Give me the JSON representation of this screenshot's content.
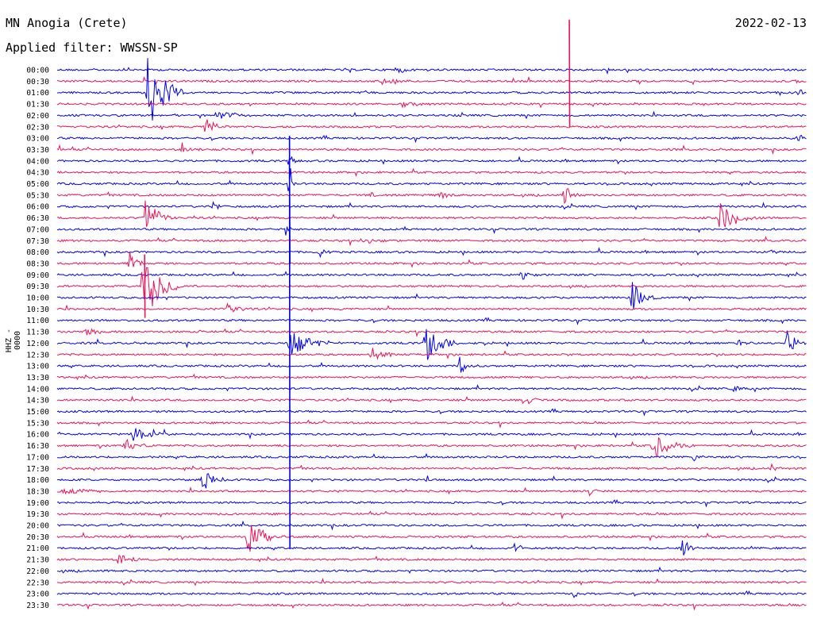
{
  "header": {
    "station": "MN Anogia (Crete)",
    "date": "2022-02-13",
    "filter_label": "Applied filter: WWSSN-SP"
  },
  "axis": {
    "ylabel": "HHZ - 0000"
  },
  "colors": {
    "even_rows": "#0000ee",
    "odd_rows": "#ee1155",
    "text": "#000000",
    "background": "#ffffff"
  },
  "chart_data": {
    "type": "line",
    "kind": "helicorder",
    "title": "MN Anogia (Crete)",
    "subtitle": "Applied filter: WWSSN-SP",
    "ylabel": "HHZ - 0000",
    "row_interval_minutes": 30,
    "row_labels": [
      "00:00",
      "00:30",
      "01:00",
      "01:30",
      "02:00",
      "02:30",
      "03:00",
      "03:30",
      "04:00",
      "04:30",
      "05:00",
      "05:30",
      "06:00",
      "06:30",
      "07:00",
      "07:30",
      "08:00",
      "08:30",
      "09:00",
      "09:30",
      "10:00",
      "10:30",
      "11:00",
      "11:30",
      "12:00",
      "12:30",
      "13:00",
      "13:30",
      "14:00",
      "14:30",
      "15:00",
      "15:30",
      "16:00",
      "16:30",
      "17:00",
      "17:30",
      "18:00",
      "18:30",
      "19:00",
      "19:30",
      "20:00",
      "20:30",
      "21:00",
      "21:30",
      "22:00",
      "22:30",
      "23:00",
      "23:30"
    ],
    "events": [
      {
        "row": 0,
        "minute": 13.5,
        "amp": 4,
        "dur": 2.0
      },
      {
        "row": 0,
        "minute": 22.0,
        "amp": 8,
        "dur": 0.4
      },
      {
        "row": 1,
        "minute": 13.0,
        "amp": 7,
        "dur": 1.4
      },
      {
        "row": 1,
        "minute": 29.5,
        "amp": 8,
        "dur": 0.3
      },
      {
        "row": 2,
        "minute": 3.6,
        "amp": 60,
        "dur": 1.6
      },
      {
        "row": 2,
        "minute": 29.7,
        "amp": 5,
        "dur": 0.8
      },
      {
        "row": 3,
        "minute": 13.8,
        "amp": 5,
        "dur": 1.6
      },
      {
        "row": 4,
        "minute": 6.4,
        "amp": 6,
        "dur": 1.8
      },
      {
        "row": 5,
        "minute": 5.9,
        "amp": 14,
        "dur": 1.0
      },
      {
        "row": 6,
        "minute": 29.6,
        "amp": 6,
        "dur": 0.5
      },
      {
        "row": 7,
        "minute": 5.0,
        "amp": 9,
        "dur": 0.9
      },
      {
        "row": 8,
        "minute": 9.3,
        "amp": 18,
        "dur": 0.3
      },
      {
        "row": 10,
        "minute": 9.3,
        "amp": 30,
        "dur": 0.3
      },
      {
        "row": 11,
        "minute": 12.5,
        "amp": 6,
        "dur": 0.8
      },
      {
        "row": 11,
        "minute": 15.3,
        "amp": 8,
        "dur": 0.9
      },
      {
        "row": 11,
        "minute": 20.3,
        "amp": 14,
        "dur": 0.8
      },
      {
        "row": 12,
        "minute": 6.2,
        "amp": 8,
        "dur": 0.6
      },
      {
        "row": 13,
        "minute": 3.5,
        "amp": 35,
        "dur": 1.1
      },
      {
        "row": 13,
        "minute": 26.5,
        "amp": 22,
        "dur": 1.8
      },
      {
        "row": 14,
        "minute": 9.1,
        "amp": 12,
        "dur": 0.4
      },
      {
        "row": 15,
        "minute": 12.2,
        "amp": 6,
        "dur": 1.2
      },
      {
        "row": 16,
        "minute": 10.5,
        "amp": 7,
        "dur": 0.6
      },
      {
        "row": 16,
        "minute": 28.6,
        "amp": 5,
        "dur": 1.0
      },
      {
        "row": 17,
        "minute": 2.9,
        "amp": 16,
        "dur": 0.8
      },
      {
        "row": 18,
        "minute": 18.6,
        "amp": 6,
        "dur": 1.0
      },
      {
        "row": 19,
        "minute": 3.4,
        "amp": 55,
        "dur": 1.7
      },
      {
        "row": 20,
        "minute": 23.0,
        "amp": 22,
        "dur": 1.0
      },
      {
        "row": 21,
        "minute": 6.8,
        "amp": 8,
        "dur": 1.0
      },
      {
        "row": 23,
        "minute": 1.1,
        "amp": 7,
        "dur": 1.2
      },
      {
        "row": 24,
        "minute": 9.3,
        "amp": 20,
        "dur": 2.0
      },
      {
        "row": 24,
        "minute": 14.7,
        "amp": 30,
        "dur": 1.4
      },
      {
        "row": 24,
        "minute": 27.2,
        "amp": 6,
        "dur": 0.7
      },
      {
        "row": 24,
        "minute": 29.2,
        "amp": 14,
        "dur": 1.2
      },
      {
        "row": 25,
        "minute": 12.6,
        "amp": 10,
        "dur": 1.0
      },
      {
        "row": 26,
        "minute": 16.1,
        "amp": 12,
        "dur": 0.8
      },
      {
        "row": 28,
        "minute": 27.1,
        "amp": 6,
        "dur": 0.6
      },
      {
        "row": 29,
        "minute": 18.7,
        "amp": 10,
        "dur": 0.9
      },
      {
        "row": 32,
        "minute": 3.0,
        "amp": 14,
        "dur": 1.6
      },
      {
        "row": 33,
        "minute": 2.7,
        "amp": 12,
        "dur": 1.0
      },
      {
        "row": 33,
        "minute": 23.8,
        "amp": 18,
        "dur": 1.8
      },
      {
        "row": 34,
        "minute": 25.5,
        "amp": 6,
        "dur": 0.6
      },
      {
        "row": 35,
        "minute": 28.6,
        "amp": 6,
        "dur": 0.6
      },
      {
        "row": 36,
        "minute": 5.8,
        "amp": 18,
        "dur": 1.2
      },
      {
        "row": 36,
        "minute": 14.8,
        "amp": 6,
        "dur": 0.6
      },
      {
        "row": 37,
        "minute": 0.2,
        "amp": 6,
        "dur": 2.0
      },
      {
        "row": 37,
        "minute": 21.3,
        "amp": 7,
        "dur": 0.6
      },
      {
        "row": 41,
        "minute": 7.6,
        "amp": 25,
        "dur": 1.6
      },
      {
        "row": 42,
        "minute": 18.3,
        "amp": 6,
        "dur": 0.7
      },
      {
        "row": 42,
        "minute": 25.0,
        "amp": 14,
        "dur": 0.8
      },
      {
        "row": 43,
        "minute": 2.4,
        "amp": 12,
        "dur": 0.9
      },
      {
        "row": 46,
        "minute": 20.6,
        "amp": 7,
        "dur": 0.6
      }
    ],
    "long_spikes": [
      {
        "row": 26,
        "minute": 9.3,
        "up": 290,
        "down": 230
      },
      {
        "row": 19,
        "minute": 3.5,
        "up": 40,
        "down": 40
      },
      {
        "row": 5,
        "minute": 20.5,
        "up": 135,
        "down": 0
      },
      {
        "row": 8,
        "minute": 9.3,
        "up": 0,
        "down": 130
      }
    ]
  }
}
